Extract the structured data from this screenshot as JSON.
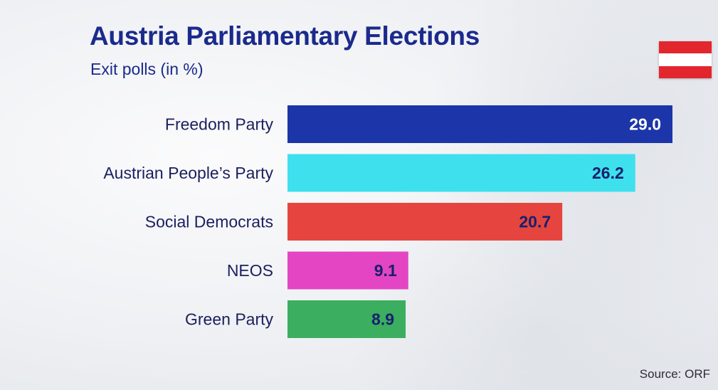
{
  "header": {
    "title": "Austria Parliamentary Elections",
    "subtitle": "Exit polls (in %)"
  },
  "flag": {
    "name": "austria-flag-icon",
    "colors": [
      "#e3262e",
      "#ffffff",
      "#e3262e"
    ]
  },
  "footer": {
    "source": "Source: ORF"
  },
  "chart_data": {
    "type": "bar",
    "orientation": "horizontal",
    "categories": [
      "Freedom Party",
      "Austrian People’s Party",
      "Social Democrats",
      "NEOS",
      "Green Party"
    ],
    "values": [
      29.0,
      26.2,
      20.7,
      9.1,
      8.9
    ],
    "value_labels": [
      "29.0",
      "26.2",
      "20.7",
      "9.1",
      "8.9"
    ],
    "colors": [
      "#1c35a8",
      "#3fe0ee",
      "#e6453f",
      "#e445c3",
      "#3cae5f"
    ],
    "label_colors": [
      "#ffffff",
      "#17206b",
      "#17206b",
      "#17206b",
      "#17206b"
    ],
    "title": "Austria Parliamentary Elections",
    "subtitle": "Exit polls (in %)",
    "xlim": [
      0,
      29.0
    ],
    "grid": false,
    "legend": "none"
  }
}
